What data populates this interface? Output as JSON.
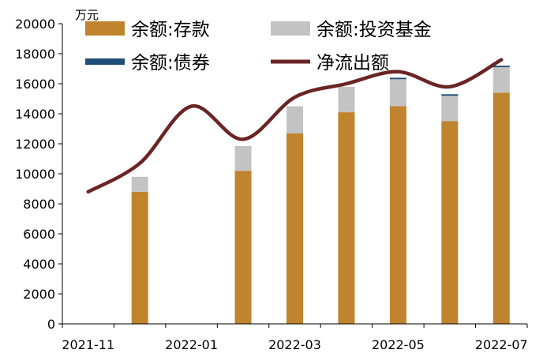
{
  "chart_data": {
    "type": "bar",
    "unit": "万元",
    "x_tick_labels": [
      "2021-11",
      "2022-01",
      "2022-03",
      "2022-05",
      "2022-07"
    ],
    "categories": [
      "2021-11",
      "2021-12",
      "2022-01",
      "2022-02",
      "2022-03",
      "2022-04",
      "2022-05",
      "2022-06",
      "2022-07"
    ],
    "ylim": [
      0,
      20000
    ],
    "y_ticks": [
      0,
      2000,
      4000,
      6000,
      8000,
      10000,
      12000,
      14000,
      16000,
      18000,
      20000
    ],
    "stacked": true,
    "series": [
      {
        "name": "余额:存款",
        "kind": "bar",
        "color": "#C0832E",
        "values": [
          null,
          8800,
          null,
          10200,
          12700,
          14100,
          14500,
          13500,
          15400
        ]
      },
      {
        "name": "余额:投资基金",
        "kind": "bar",
        "color": "#C3C3C3",
        "values": [
          null,
          1000,
          null,
          1650,
          1800,
          1700,
          1800,
          1700,
          1700
        ]
      },
      {
        "name": "余额:债券",
        "kind": "bar",
        "color": "#1F4E79",
        "values": [
          null,
          0,
          null,
          0,
          0,
          0,
          100,
          100,
          100
        ]
      },
      {
        "name": "净流出额",
        "kind": "line",
        "color": "#6B2424",
        "values": [
          8800,
          10700,
          14500,
          12300,
          15100,
          16000,
          16800,
          15800,
          17600
        ]
      }
    ],
    "legend": {
      "placement": "top"
    },
    "grid": false
  }
}
